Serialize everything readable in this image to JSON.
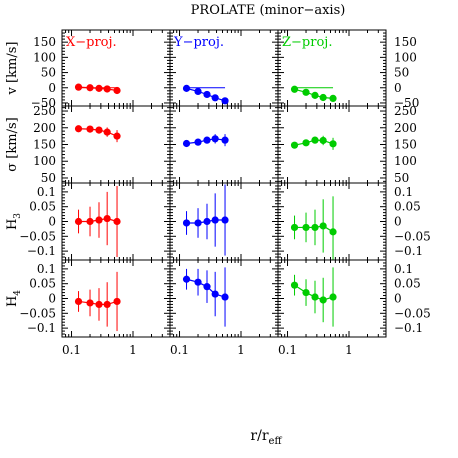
{
  "chart_data": {
    "type": "scatter",
    "title": "PROLATE (minor−axis)",
    "xlabel": "r/r",
    "xlabel_sub": "eff",
    "xscale": "log",
    "xlim": [
      0.07,
      4
    ],
    "xticks": [
      0.1,
      1
    ],
    "xtick_labels": [
      "0.1",
      "1"
    ],
    "columns": [
      {
        "name": "X−proj.",
        "color": "#ff0000"
      },
      {
        "name": "Y−proj.",
        "color": "#0000ff"
      },
      {
        "name": "Z−proj.",
        "color": "#00cc00"
      }
    ],
    "rows": [
      {
        "ylabel": "v [km/s]",
        "ylim": [
          -60,
          190
        ],
        "yticks": [
          150,
          100,
          50,
          0,
          -50
        ],
        "ytick_labels": [
          "150",
          "100",
          "50",
          "0",
          "−50"
        ],
        "left_ticks": true,
        "right_ticks": true,
        "hline": 0,
        "panels": [
          {
            "x": [
              0.13,
              0.2,
              0.28,
              0.38,
              0.55
            ],
            "y": [
              2,
              0,
              -2,
              -4,
              -9
            ],
            "err": [
              5,
              5,
              5,
              6,
              7
            ]
          },
          {
            "x": [
              0.13,
              0.2,
              0.28,
              0.38,
              0.55
            ],
            "y": [
              -2,
              -12,
              -22,
              -33,
              -43
            ],
            "err": [
              6,
              6,
              6,
              7,
              8
            ]
          },
          {
            "x": [
              0.13,
              0.2,
              0.28,
              0.38,
              0.55
            ],
            "y": [
              -5,
              -15,
              -25,
              -32,
              -35
            ],
            "err": [
              6,
              6,
              6,
              7,
              8
            ]
          }
        ]
      },
      {
        "ylabel": "σ [km/s]",
        "ylim": [
          35,
          265
        ],
        "yticks": [
          250,
          200,
          150,
          100,
          50
        ],
        "ytick_labels": [
          "250",
          "200",
          "150",
          "100",
          "50"
        ],
        "left_ticks": true,
        "right_ticks": true,
        "hline": null,
        "panels": [
          {
            "x": [
              0.13,
              0.2,
              0.28,
              0.38,
              0.55
            ],
            "y": [
              197,
              196,
              193,
              187,
              175
            ],
            "err": [
              6,
              8,
              10,
              14,
              18
            ]
          },
          {
            "x": [
              0.13,
              0.2,
              0.28,
              0.38,
              0.55
            ],
            "y": [
              153,
              157,
              163,
              167,
              163
            ],
            "err": [
              6,
              8,
              10,
              14,
              18
            ]
          },
          {
            "x": [
              0.13,
              0.2,
              0.28,
              0.38,
              0.55
            ],
            "y": [
              148,
              155,
              163,
              162,
              152
            ],
            "err": [
              6,
              8,
              10,
              14,
              18
            ]
          }
        ]
      },
      {
        "ylabel": "H",
        "ylabel_sub": "3",
        "ylim": [
          -0.13,
          0.13
        ],
        "yticks": [
          0.1,
          0.05,
          0,
          -0.05,
          -0.1
        ],
        "ytick_labels_left": [
          "0.1",
          "0.05",
          "0",
          "−0.05",
          "−0.1"
        ],
        "ytick_labels_right": [
          "0.1",
          "0.05",
          "0",
          "−0.05",
          "−0.1"
        ],
        "left_ticks": true,
        "right_ticks": true,
        "hline": null,
        "panels": [
          {
            "x": [
              0.13,
              0.2,
              0.28,
              0.38,
              0.55
            ],
            "y": [
              0.0,
              0.0,
              0.005,
              0.01,
              0.0
            ],
            "err": [
              0.04,
              0.05,
              0.06,
              0.09,
              0.12
            ]
          },
          {
            "x": [
              0.13,
              0.2,
              0.28,
              0.38,
              0.55
            ],
            "y": [
              -0.005,
              -0.005,
              0.0,
              0.005,
              0.005
            ],
            "err": [
              0.04,
              0.05,
              0.06,
              0.09,
              0.12
            ]
          },
          {
            "x": [
              0.13,
              0.2,
              0.28,
              0.38,
              0.55
            ],
            "y": [
              -0.02,
              -0.02,
              -0.02,
              -0.015,
              -0.035
            ],
            "err": [
              0.04,
              0.05,
              0.06,
              0.09,
              0.12
            ]
          }
        ]
      },
      {
        "ylabel": "H",
        "ylabel_sub": "4",
        "ylim": [
          -0.13,
          0.13
        ],
        "yticks": [
          0.1,
          0.05,
          0,
          -0.05,
          -0.1
        ],
        "ytick_labels_left": [
          "0.1",
          "0.05",
          "0",
          "−0.05",
          "−0.1"
        ],
        "ytick_labels_right": [
          "0.1",
          "0.05",
          "0",
          "−0.05",
          "−0.1"
        ],
        "left_ticks": true,
        "right_ticks": true,
        "hline": null,
        "panels": [
          {
            "x": [
              0.13,
              0.2,
              0.28,
              0.38,
              0.55
            ],
            "y": [
              -0.01,
              -0.015,
              -0.02,
              -0.02,
              -0.01
            ],
            "err": [
              0.035,
              0.045,
              0.055,
              0.075,
              0.1
            ]
          },
          {
            "x": [
              0.13,
              0.2,
              0.28,
              0.38,
              0.55
            ],
            "y": [
              0.065,
              0.055,
              0.04,
              0.015,
              0.005
            ],
            "err": [
              0.035,
              0.045,
              0.055,
              0.075,
              0.1
            ]
          },
          {
            "x": [
              0.13,
              0.2,
              0.28,
              0.38,
              0.55
            ],
            "y": [
              0.045,
              0.02,
              0.005,
              -0.005,
              0.005
            ],
            "err": [
              0.035,
              0.045,
              0.055,
              0.075,
              0.1
            ]
          }
        ]
      }
    ]
  }
}
